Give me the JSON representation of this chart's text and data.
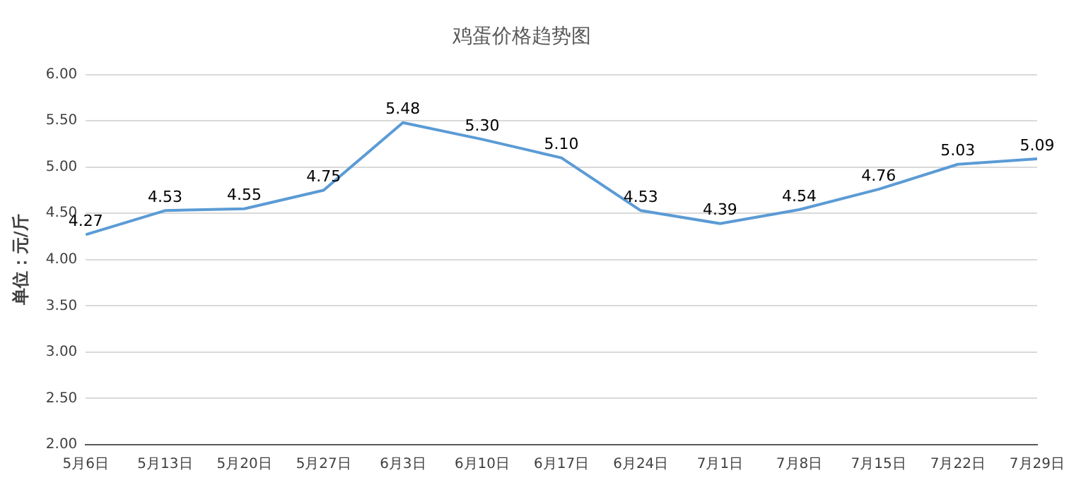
{
  "chart_data": {
    "type": "line",
    "title": "鸡蛋价格趋势图",
    "ylabel": "单位：元/斤",
    "categories": [
      "5月6日",
      "5月13日",
      "5月20日",
      "5月27日",
      "6月3日",
      "6月10日",
      "6月17日",
      "6月24日",
      "7月1日",
      "7月8日",
      "7月15日",
      "7月22日",
      "7月29日"
    ],
    "series": [
      {
        "color": "#5b9bd5",
        "values": [
          4.27,
          4.53,
          4.55,
          4.75,
          5.48,
          5.3,
          5.1,
          4.53,
          4.39,
          4.54,
          4.76,
          5.03,
          5.09
        ],
        "value_labels": [
          "4.27",
          "4.53",
          "4.55",
          "4.75",
          "5.48",
          "5.30",
          "5.10",
          "4.53",
          "4.39",
          "4.54",
          "4.76",
          "5.03",
          "5.09"
        ]
      }
    ],
    "ylim": [
      2,
      6
    ],
    "yticks": [
      {
        "value": 2,
        "label": "2.00"
      },
      {
        "value": 2.5,
        "label": "2.50"
      },
      {
        "value": 3,
        "label": "3.00"
      },
      {
        "value": 3.5,
        "label": "3.50"
      },
      {
        "value": 4,
        "label": "4.00"
      },
      {
        "value": 4.5,
        "label": "4.50"
      },
      {
        "value": 5,
        "label": "5.00"
      },
      {
        "value": 5.5,
        "label": "5.50"
      },
      {
        "value": 6,
        "label": "6.00"
      }
    ],
    "grid": "y",
    "legend": false,
    "marker": "none",
    "line_style": "solid"
  }
}
